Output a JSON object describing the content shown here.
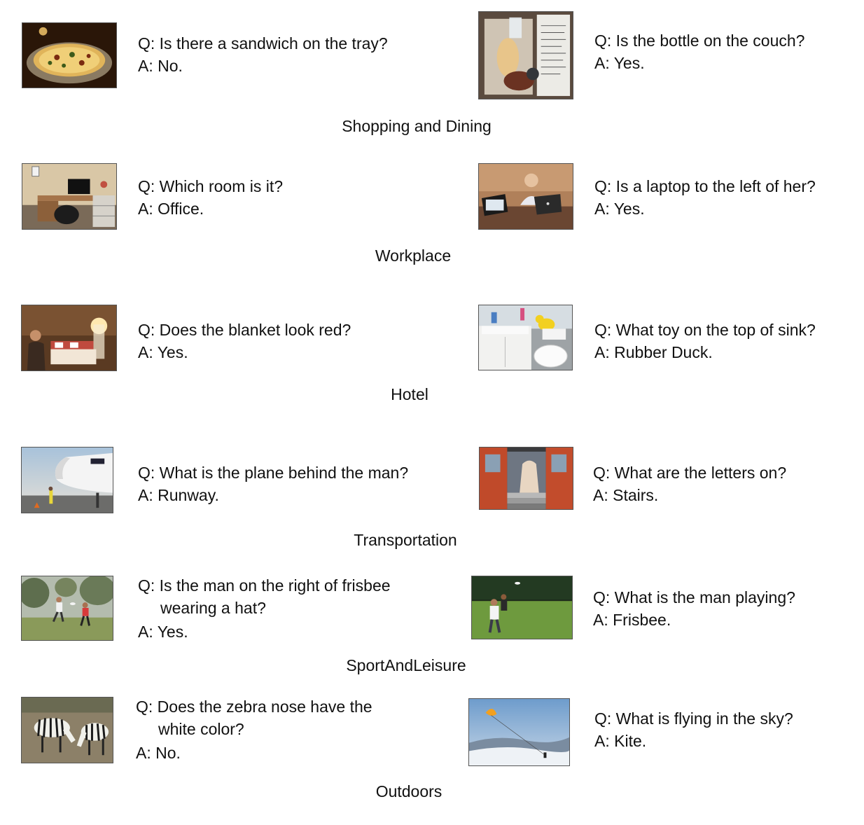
{
  "groups": [
    {
      "category": "Shopping and Dining",
      "items": [
        {
          "image": "pizza-photo",
          "question": "Q: Is there a sandwich on the tray?",
          "answer": "A: No."
        },
        {
          "image": "receipt-food-photo",
          "question": "Q: Is the bottle on the couch?",
          "answer": "A: Yes."
        }
      ]
    },
    {
      "category": "Workplace",
      "items": [
        {
          "image": "office-desk-photo",
          "question": "Q: Which room is it?",
          "answer": "A: Office."
        },
        {
          "image": "woman-laptop-photo",
          "question": "Q: Is a laptop to the left of her?",
          "answer": "A: Yes."
        }
      ]
    },
    {
      "category": "Hotel",
      "items": [
        {
          "image": "hotel-room-photo",
          "question": "Q: Does the blanket look red?",
          "answer": "A: Yes."
        },
        {
          "image": "bathroom-sink-photo",
          "question": "Q: What toy on the top of sink?",
          "answer": "A: Rubber Duck."
        }
      ]
    },
    {
      "category": "Transportation",
      "items": [
        {
          "image": "airplane-photo",
          "question": "Q: What is the plane behind the man?",
          "answer": "A: Runway."
        },
        {
          "image": "train-door-photo",
          "question": "Q: What are the letters on?",
          "answer": "A: Stairs."
        }
      ]
    },
    {
      "category": "SportAndLeisure",
      "items": [
        {
          "image": "frisbee-field-photo",
          "question_line1": "Q: Is the man on the right of frisbee",
          "question_line2": "wearing a hat?",
          "answer": "A: Yes."
        },
        {
          "image": "frisbee-player-photo",
          "question": "Q: What is the man playing?",
          "answer": "A: Frisbee."
        }
      ]
    },
    {
      "category": "Outdoors",
      "items": [
        {
          "image": "zebras-photo",
          "question_line1": "Q: Does the zebra nose have the",
          "question_line2": "white color?",
          "answer": "A: No."
        },
        {
          "image": "kite-snow-photo",
          "question": "Q: What is flying in the sky?",
          "answer": "A: Kite."
        }
      ]
    }
  ]
}
